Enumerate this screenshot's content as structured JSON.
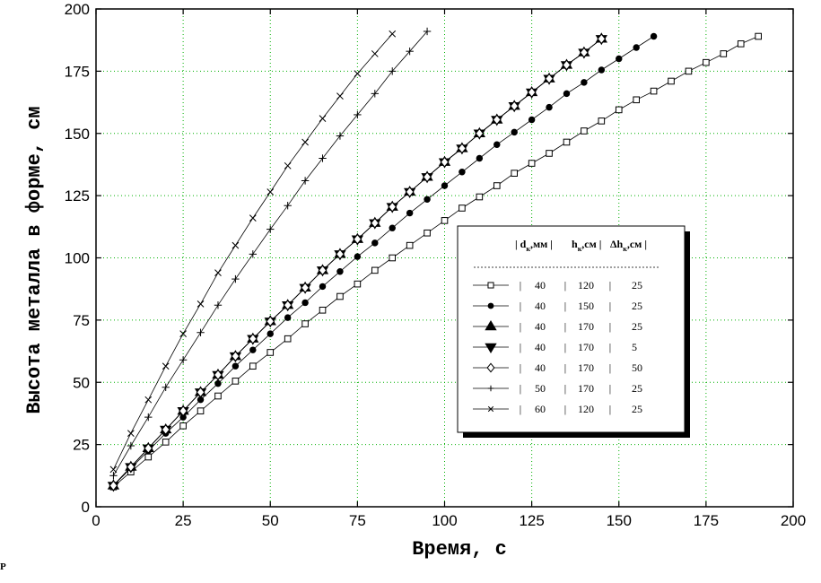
{
  "chart_data": {
    "type": "line",
    "xlabel": "Время, с",
    "ylabel": "Высота металла в форме, см",
    "xlim": [
      0,
      200
    ],
    "ylim": [
      0,
      200
    ],
    "xticks": [
      "0",
      "25",
      "50",
      "75",
      "100",
      "125",
      "150",
      "175",
      "200"
    ],
    "yticks": [
      "0",
      "25",
      "50",
      "75",
      "100",
      "125",
      "150",
      "175",
      "200"
    ],
    "grid": true,
    "legend_position": "center-right",
    "legend_header": {
      "col1": "| d",
      "col1_sub": "к",
      "col1_unit": ",мм |",
      "col2": "h",
      "col2_sub": "к",
      "col2_unit": ",см |",
      "col3": "Δh",
      "col3_sub": "к",
      "col3_unit": ",см |"
    },
    "series": [
      {
        "marker": "square-open",
        "legend": [
          "|",
          "40",
          "|",
          "120",
          "|",
          "25"
        ],
        "x": [
          5,
          10,
          15,
          20,
          25,
          30,
          35,
          40,
          45,
          50,
          55,
          60,
          65,
          70,
          75,
          80,
          85,
          90,
          95,
          100,
          105,
          110,
          115,
          120,
          125,
          130,
          135,
          140,
          145,
          150,
          155,
          160,
          165,
          170,
          175,
          180,
          185,
          190
        ],
        "y": [
          8,
          14,
          20,
          26,
          32.5,
          38.5,
          44.5,
          50.5,
          56.5,
          62,
          67.5,
          73.5,
          79,
          84.5,
          89.5,
          95,
          100,
          105,
          110,
          115,
          120,
          124.5,
          129,
          134,
          138,
          142,
          146.5,
          151,
          155,
          159.5,
          163.5,
          167,
          171,
          175,
          178.5,
          182,
          186,
          189
        ]
      },
      {
        "marker": "circle-filled",
        "legend": [
          "|",
          "40",
          "|",
          "150",
          "|",
          "25"
        ],
        "x": [
          5,
          10,
          15,
          20,
          25,
          30,
          35,
          40,
          45,
          50,
          55,
          60,
          65,
          70,
          75,
          80,
          85,
          90,
          95,
          100,
          105,
          110,
          115,
          120,
          125,
          130,
          135,
          140,
          145,
          150,
          155,
          160
        ],
        "y": [
          8.5,
          15.5,
          22.5,
          29.5,
          36,
          43,
          49.5,
          56.5,
          63,
          69.5,
          76,
          82,
          88.5,
          94.5,
          100.5,
          106,
          112,
          118,
          123.5,
          129,
          134.5,
          140,
          145.5,
          150.5,
          155.5,
          160.5,
          166,
          170.5,
          175.5,
          180,
          184.5,
          189
        ]
      },
      {
        "marker": "triangle-up-filled",
        "legend": [
          "|",
          "40",
          "|",
          "170",
          "|",
          "25"
        ],
        "x": [
          5,
          10,
          15,
          20,
          25,
          30,
          35,
          40,
          45,
          50,
          55,
          60,
          65,
          70,
          75,
          80,
          85,
          90,
          95,
          100,
          105,
          110,
          115,
          120,
          125,
          130,
          135,
          140,
          145
        ],
        "y": [
          8.5,
          16,
          23.5,
          31,
          38.5,
          46,
          53,
          60.5,
          67.5,
          74.5,
          81,
          88,
          95,
          101.5,
          107.5,
          114,
          120.5,
          126.5,
          132.5,
          138.5,
          144,
          150,
          155.5,
          161,
          166.5,
          172,
          177.5,
          182.5,
          188
        ]
      },
      {
        "marker": "triangle-down-filled",
        "legend": [
          "|",
          "40",
          "|",
          "170",
          "|",
          "5"
        ],
        "x": [
          5,
          10,
          15,
          20,
          25,
          30,
          35,
          40,
          45,
          50,
          55,
          60,
          65,
          70,
          75,
          80,
          85,
          90,
          95,
          100,
          105,
          110,
          115,
          120,
          125,
          130,
          135,
          140,
          145
        ],
        "y": [
          8.5,
          16,
          23.5,
          31,
          38.5,
          46,
          53,
          60.5,
          67.5,
          74.5,
          81,
          88,
          95,
          101.5,
          107.5,
          114,
          120.5,
          126.5,
          132.5,
          138.5,
          144,
          150,
          155.5,
          161,
          166.5,
          172,
          177.5,
          182.5,
          188
        ]
      },
      {
        "marker": "diamond-open",
        "legend": [
          "|",
          "40",
          "|",
          "170",
          "|",
          "50"
        ],
        "x": [
          5,
          10,
          15,
          20,
          25,
          30,
          35,
          40,
          45,
          50,
          55,
          60,
          65,
          70,
          75,
          80,
          85,
          90,
          95,
          100,
          105,
          110,
          115,
          120,
          125,
          130,
          135,
          140,
          145
        ],
        "y": [
          8.5,
          16,
          23.5,
          31,
          38.5,
          46,
          53,
          60.5,
          67.5,
          74.5,
          81,
          88,
          95,
          101.5,
          107.5,
          114,
          120.5,
          126.5,
          132.5,
          138.5,
          144,
          150,
          155.5,
          161,
          166.5,
          172,
          177.5,
          182.5,
          188
        ]
      },
      {
        "marker": "plus",
        "legend": [
          "|",
          "50",
          "|",
          "170",
          "|",
          "25"
        ],
        "x": [
          5,
          10,
          15,
          20,
          25,
          30,
          35,
          40,
          45,
          50,
          55,
          60,
          65,
          70,
          75,
          80,
          85,
          90,
          95
        ],
        "y": [
          12.5,
          24.5,
          36,
          48,
          59,
          70,
          81,
          91.5,
          101.5,
          111.5,
          121,
          131,
          140,
          149,
          157.5,
          166,
          175,
          183,
          191
        ]
      },
      {
        "marker": "cross",
        "legend": [
          "|",
          "60",
          "|",
          "120",
          "|",
          "25"
        ],
        "x": [
          5,
          10,
          15,
          20,
          25,
          30,
          35,
          40,
          45,
          50,
          55,
          60,
          65,
          70,
          75,
          80,
          85
        ],
        "y": [
          15,
          29.5,
          43,
          56.5,
          69.5,
          81.5,
          94,
          105,
          116,
          126.5,
          137,
          146.5,
          156,
          165,
          174,
          182,
          190
        ]
      }
    ]
  },
  "footer_mark": "P"
}
